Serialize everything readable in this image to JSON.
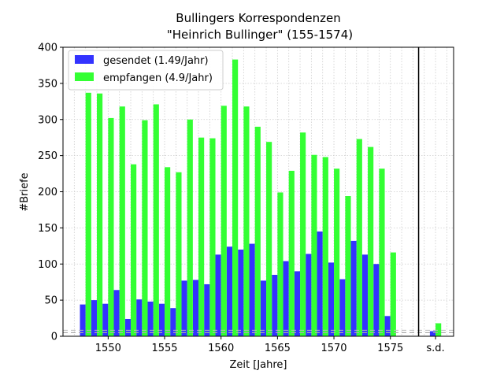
{
  "chart_data": {
    "type": "bar",
    "title_line1": "Bullingers Korrespondenzen",
    "title_line2": "\"Heinrich Bullinger\" (155-1574)",
    "xlabel": "Zeit [Jahre]",
    "ylabel": "#Briefe",
    "xlim": [
      1546.0,
      1580.6
    ],
    "ylim": [
      0,
      400
    ],
    "xticks": [
      1550,
      1555,
      1560,
      1565,
      1570,
      1575
    ],
    "yticks": [
      0,
      50,
      100,
      150,
      200,
      250,
      300,
      350,
      400
    ],
    "grid": true,
    "legend_position": "top-left",
    "years": [
      1548,
      1549,
      1550,
      1551,
      1552,
      1553,
      1554,
      1555,
      1556,
      1557,
      1558,
      1559,
      1560,
      1561,
      1562,
      1563,
      1564,
      1565,
      1566,
      1567,
      1568,
      1569,
      1570,
      1571,
      1572,
      1573,
      1574,
      1575
    ],
    "series": [
      {
        "name": "gesendet (1.49/Jahr)",
        "color": "#3333ff",
        "values": [
          44,
          50,
          45,
          64,
          24,
          51,
          48,
          45,
          39,
          77,
          78,
          72,
          113,
          124,
          120,
          128,
          77,
          85,
          104,
          90,
          114,
          145,
          102,
          79,
          132,
          113,
          100,
          28
        ]
      },
      {
        "name": "empfangen (4.9/Jahr)",
        "color": "#33ff33",
        "values": [
          337,
          336,
          302,
          318,
          238,
          299,
          321,
          234,
          227,
          300,
          275,
          274,
          319,
          383,
          318,
          290,
          269,
          199,
          229,
          282,
          251,
          248,
          232,
          194,
          273,
          262,
          232,
          116
        ]
      }
    ],
    "sd_label": "s.d.",
    "sd_position": 1579.0,
    "sd_values": {
      "gesendet": 7,
      "empfangen": 18
    },
    "vline_x": 1577.5,
    "baseline_dashed_value": 5
  }
}
